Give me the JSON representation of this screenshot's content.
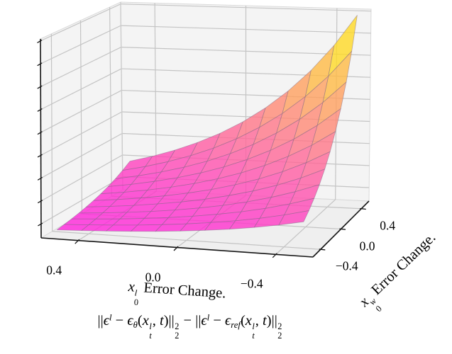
{
  "figure": {
    "background": "#ffffff",
    "plot": {
      "pane_color": "#f4f4f4",
      "floor_color": "#efefef",
      "grid_color": "#c4c4c4",
      "pane_edge_color": "#d9d9d9",
      "corner_edge_color": "#cccccc",
      "axis_color": "#151515",
      "mesh_edge_color": "rgba(130,105,135,0.5)"
    },
    "x_axis": {
      "tick_labels": [
        "0.4",
        "0.0",
        "−0.4"
      ],
      "title_segments": [
        {
          "t": "x",
          "s": "i"
        },
        {
          "up": {
            "t": "l",
            "s": "i"
          },
          "dn": {
            "t": "0",
            "s": "r"
          }
        },
        {
          "t": " Error Change.",
          "s": "r"
        }
      ]
    },
    "y_axis": {
      "tick_labels": [
        "−0.4",
        "0.0",
        "0.4"
      ],
      "title_segments": [
        {
          "t": "x",
          "s": "i"
        },
        {
          "up": {
            "t": "w",
            "s": "i"
          },
          "dn": {
            "t": "0",
            "s": "r"
          }
        },
        {
          "t": " Error Change.",
          "s": "r"
        }
      ]
    },
    "z_axis": {
      "tick_marks": 9,
      "tick_labels": []
    },
    "caption_segments": [
      {
        "t": "||",
        "s": "r"
      },
      {
        "t": "ϵ",
        "s": "i"
      },
      {
        "t": "l",
        "s": "i",
        "pos": "sup"
      },
      {
        "t": " − ",
        "s": "r"
      },
      {
        "t": "ϵ",
        "s": "i"
      },
      {
        "t": "θ",
        "s": "i",
        "pos": "sub"
      },
      {
        "t": "(",
        "s": "r"
      },
      {
        "t": "x",
        "s": "i"
      },
      {
        "up": {
          "t": "l",
          "s": "i"
        },
        "dn": {
          "t": "t",
          "s": "i"
        }
      },
      {
        "t": ", ",
        "s": "r"
      },
      {
        "t": "t",
        "s": "i"
      },
      {
        "t": ")",
        "s": "r"
      },
      {
        "t": "||",
        "s": "r"
      },
      {
        "up": {
          "t": "2",
          "s": "r"
        },
        "dn": {
          "t": "2",
          "s": "r"
        }
      },
      {
        "t": " − ",
        "s": "r"
      },
      {
        "t": "||",
        "s": "r"
      },
      {
        "t": "ϵ",
        "s": "i"
      },
      {
        "t": "l",
        "s": "i",
        "pos": "sup"
      },
      {
        "t": " − ",
        "s": "r"
      },
      {
        "t": "ϵ",
        "s": "i"
      },
      {
        "t": "ref",
        "s": "i",
        "pos": "sub"
      },
      {
        "t": "(",
        "s": "r"
      },
      {
        "t": "x",
        "s": "i"
      },
      {
        "up": {
          "t": "l",
          "s": "i"
        },
        "dn": {
          "t": "t",
          "s": "i"
        }
      },
      {
        "t": ", ",
        "s": "r"
      },
      {
        "t": "t",
        "s": "i"
      },
      {
        "t": ")",
        "s": "r"
      },
      {
        "t": "||",
        "s": "r"
      },
      {
        "up": {
          "t": "2",
          "s": "r"
        },
        "dn": {
          "t": "2",
          "s": "r"
        }
      }
    ]
  },
  "chart_data": {
    "type": "3d-surface",
    "xlabel": "x_0^l Error Change.",
    "ylabel": "x_0^w Error Change.",
    "caption": "||eps^l - eps_theta(x_t^l, t)||_2^2 - ||eps^l - eps_ref(x_t^l, t)||_2^2",
    "x_ticks": [
      0.4,
      0.0,
      -0.4
    ],
    "y_ticks": [
      -0.4,
      0.0,
      0.4
    ],
    "x_range": [
      -0.55,
      0.55
    ],
    "y_range": [
      -0.55,
      0.55
    ],
    "grid": true,
    "legend": false,
    "colormap": {
      "name": "spring",
      "low": "#ff00ff",
      "high": "#ffff00"
    },
    "z_gridlines": {
      "count": 9,
      "z_min": 0.07,
      "z_max": 0.99
    },
    "surface_model": {
      "description": "z is ~0 over most of the domain and rises exponentially toward the corner (x=-0.5, y=+0.5); iso-lines run along diagonals y-x=const; z ~ (exp(k*m)-1), m = ((0.55-x)+(y+0.55))/2.2",
      "k": 4,
      "grid_n": 10,
      "u_min": 0.045,
      "u_max": 0.955,
      "z_base": 0.03,
      "z_span": 0.95,
      "alpha": 0.8,
      "color_t_min": 0.13
    }
  }
}
